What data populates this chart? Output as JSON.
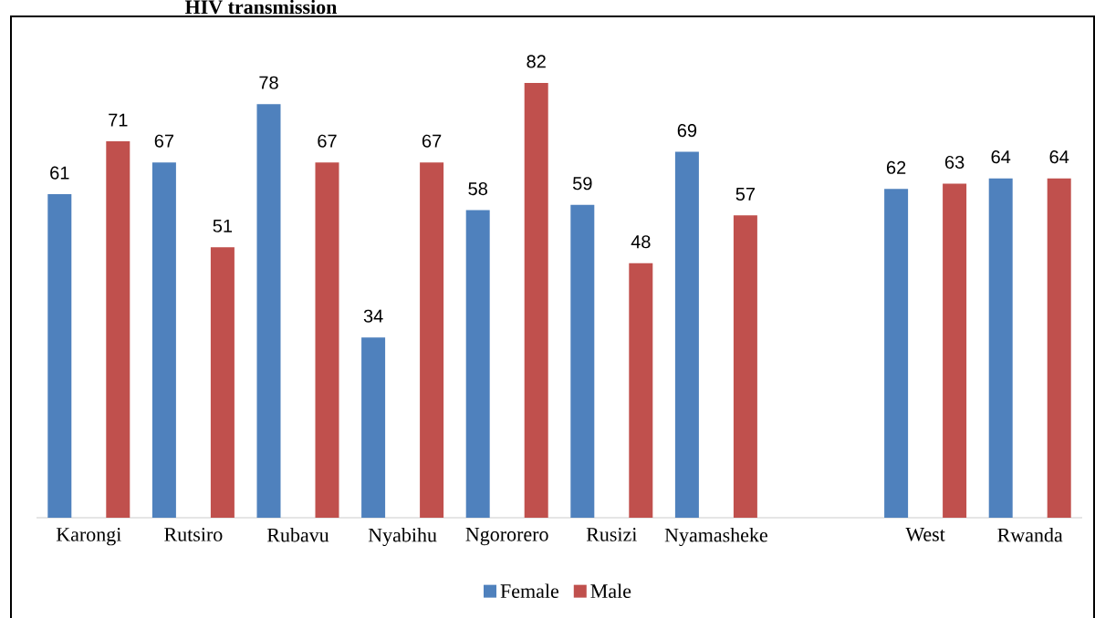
{
  "chart_data": {
    "type": "bar",
    "title": "HIV transmission",
    "categories": [
      "Karongi",
      "Rutsiro",
      "Rubavu",
      "Nyabihu",
      "Ngororero",
      "Rusizi",
      "Nyamasheke",
      null,
      "West",
      "Rwanda"
    ],
    "series": [
      {
        "name": "Female",
        "color": "#4f81bd",
        "values": [
          61,
          67,
          78,
          34,
          58,
          59,
          69,
          null,
          62,
          64
        ]
      },
      {
        "name": "Male",
        "color": "#c0504d",
        "values": [
          71,
          51,
          67,
          67,
          82,
          48,
          57,
          null,
          63,
          64
        ]
      }
    ],
    "data_labels": true,
    "legend": "bottom"
  }
}
